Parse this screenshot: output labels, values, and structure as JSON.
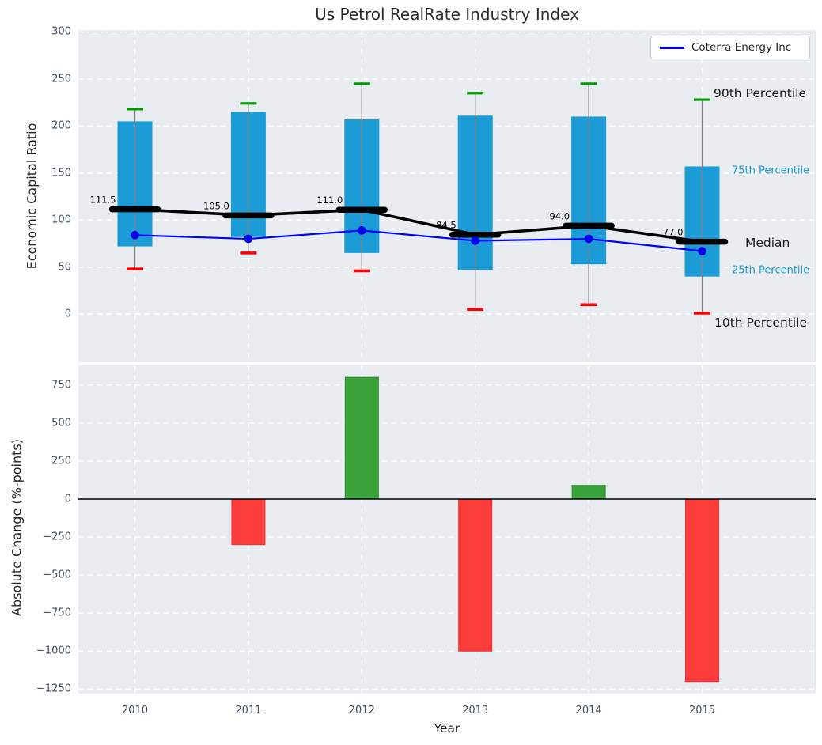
{
  "title": "Us Petrol RealRate Industry Index",
  "legend": {
    "label": "Coterra Energy Inc"
  },
  "axis_style": {
    "plot_bg": "#e9edf1",
    "grid_color": "#ffffff",
    "tick_color": "#3e4e63",
    "label_color": "#262626"
  },
  "chart_data": [
    {
      "type": "box-percentile-timeseries",
      "title": "Us Petrol RealRate Industry Index",
      "ylabel": "Economic Capital Ratio",
      "categories": [
        "2010",
        "2011",
        "2012",
        "2013",
        "2014",
        "2015"
      ],
      "yticks": [
        300,
        250,
        200,
        150,
        100,
        50,
        0
      ],
      "ylim": [
        -51,
        302
      ],
      "grid": true,
      "legend_position": "upper right",
      "series": [
        {
          "name": "90th Percentile",
          "values": [
            218,
            224,
            245,
            235,
            245,
            228
          ]
        },
        {
          "name": "75th Percentile",
          "values": [
            205,
            215,
            207,
            211,
            210,
            157
          ]
        },
        {
          "name": "Median",
          "values": [
            111.5,
            105.0,
            111.0,
            84.5,
            94.0,
            77.0
          ]
        },
        {
          "name": "25th Percentile",
          "values": [
            72,
            82,
            65,
            47,
            53,
            40
          ]
        },
        {
          "name": "10th Percentile",
          "values": [
            48,
            65,
            46,
            5,
            10,
            1
          ]
        },
        {
          "name": "Coterra Energy Inc",
          "values": [
            84,
            80,
            89,
            78,
            80,
            67
          ]
        }
      ],
      "median_labels": [
        "111.5",
        "105.0",
        "111.0",
        "84.5",
        "94.0",
        "77.0"
      ],
      "annotations": {
        "p90": "90th Percentile",
        "p75": "75th Percentile",
        "median": "Median",
        "p25": "25th Percentile",
        "p10": "10th Percentile"
      },
      "colors": {
        "box": "#1b9cd6",
        "median": "#000000",
        "p90_cap": "#009a00",
        "p10_cap": "#ff0000",
        "whisker": "#808080",
        "company_line": "#0000ff",
        "percentile_label": "#1b9cd6"
      }
    },
    {
      "type": "bar",
      "xlabel": "Year",
      "ylabel": "Absolute Change (%-points)",
      "categories": [
        "2010",
        "2011",
        "2012",
        "2013",
        "2014",
        "2015"
      ],
      "values": [
        0,
        -300,
        800,
        -1000,
        90,
        -1200
      ],
      "yticks": [
        750,
        500,
        250,
        0,
        -250,
        -500,
        -750,
        -1000,
        -1250
      ],
      "ylim": [
        -1280,
        880
      ],
      "grid": true,
      "positive_color": "#3ba13b",
      "negative_color": "#fd3c3c",
      "positive_edge": "#2e8b2e",
      "negative_edge": "#e83333",
      "zero_line_color": "#000000"
    }
  ]
}
